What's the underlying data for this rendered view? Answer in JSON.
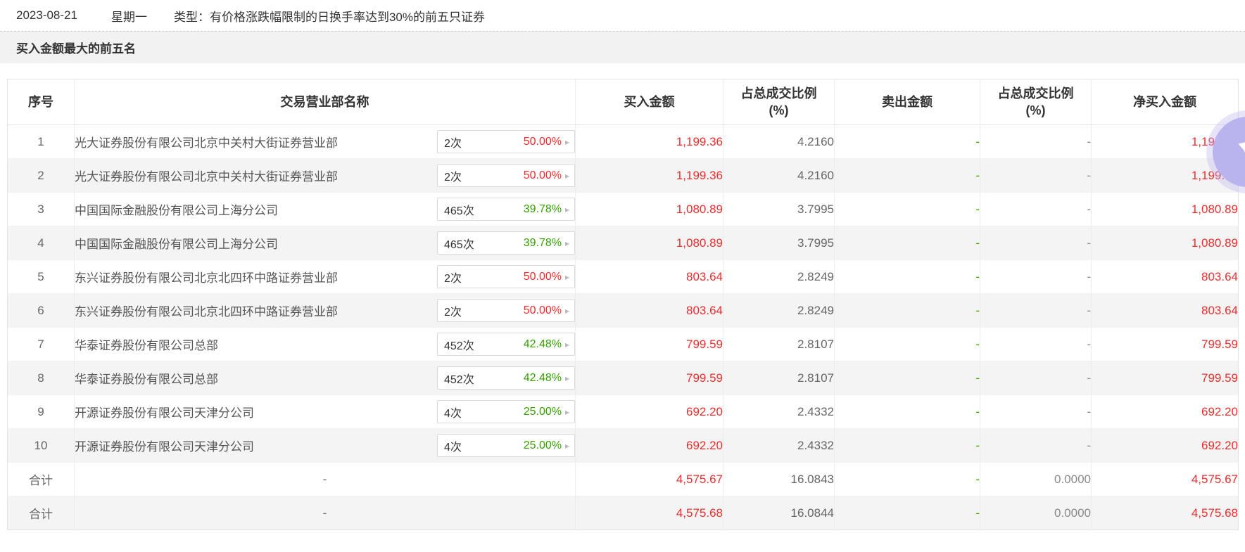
{
  "meta_bar": {
    "date": "2023-08-21",
    "weekday": "星期一",
    "type_label": "类型：有价格涨跌幅限制的日换手率达到30%的前五只证券"
  },
  "section": {
    "title": "买入金额最大的前五名"
  },
  "table": {
    "headers": [
      "序号",
      "交易营业部名称",
      "买入金额",
      "占总成交比例(%)",
      "卖出金额",
      "占总成交比例(%)",
      "净买入金额"
    ],
    "rows": [
      {
        "no": "1",
        "name": "光大证券股份有限公司北京中关村大街证券营业部",
        "badge_count": "2次",
        "badge_percent": "50.00%",
        "percent_color": "red",
        "buy": "1,199.36",
        "buy_ratio": "4.2160",
        "sell": "-",
        "sell_ratio": "-",
        "net": "1,199.36"
      },
      {
        "no": "2",
        "name": "光大证券股份有限公司北京中关村大街证券营业部",
        "badge_count": "2次",
        "badge_percent": "50.00%",
        "percent_color": "red",
        "buy": "1,199.36",
        "buy_ratio": "4.2160",
        "sell": "-",
        "sell_ratio": "-",
        "net": "1,199.36"
      },
      {
        "no": "3",
        "name": "中国国际金融股份有限公司上海分公司",
        "badge_count": "465次",
        "badge_percent": "39.78%",
        "percent_color": "green",
        "buy": "1,080.89",
        "buy_ratio": "3.7995",
        "sell": "-",
        "sell_ratio": "-",
        "net": "1,080.89"
      },
      {
        "no": "4",
        "name": "中国国际金融股份有限公司上海分公司",
        "badge_count": "465次",
        "badge_percent": "39.78%",
        "percent_color": "green",
        "buy": "1,080.89",
        "buy_ratio": "3.7995",
        "sell": "-",
        "sell_ratio": "-",
        "net": "1,080.89"
      },
      {
        "no": "5",
        "name": "东兴证券股份有限公司北京北四环中路证券营业部",
        "badge_count": "2次",
        "badge_percent": "50.00%",
        "percent_color": "red",
        "buy": "803.64",
        "buy_ratio": "2.8249",
        "sell": "-",
        "sell_ratio": "-",
        "net": "803.64"
      },
      {
        "no": "6",
        "name": "东兴证券股份有限公司北京北四环中路证券营业部",
        "badge_count": "2次",
        "badge_percent": "50.00%",
        "percent_color": "red",
        "buy": "803.64",
        "buy_ratio": "2.8249",
        "sell": "-",
        "sell_ratio": "-",
        "net": "803.64"
      },
      {
        "no": "7",
        "name": "华泰证券股份有限公司总部",
        "badge_count": "452次",
        "badge_percent": "42.48%",
        "percent_color": "green",
        "buy": "799.59",
        "buy_ratio": "2.8107",
        "sell": "-",
        "sell_ratio": "-",
        "net": "799.59"
      },
      {
        "no": "8",
        "name": "华泰证券股份有限公司总部",
        "badge_count": "452次",
        "badge_percent": "42.48%",
        "percent_color": "green",
        "buy": "799.59",
        "buy_ratio": "2.8107",
        "sell": "-",
        "sell_ratio": "-",
        "net": "799.59"
      },
      {
        "no": "9",
        "name": "开源证券股份有限公司天津分公司",
        "badge_count": "4次",
        "badge_percent": "25.00%",
        "percent_color": "green",
        "buy": "692.20",
        "buy_ratio": "2.4332",
        "sell": "-",
        "sell_ratio": "-",
        "net": "692.20"
      },
      {
        "no": "10",
        "name": "开源证券股份有限公司天津分公司",
        "badge_count": "4次",
        "badge_percent": "25.00%",
        "percent_color": "green",
        "buy": "692.20",
        "buy_ratio": "2.4332",
        "sell": "-",
        "sell_ratio": "-",
        "net": "692.20"
      }
    ],
    "total_rows": [
      {
        "no": "合计",
        "name": "-",
        "buy": "4,575.67",
        "buy_ratio": "16.0843",
        "sell": "-",
        "sell_ratio": "0.0000",
        "net": "4,575.67"
      },
      {
        "no": "合计",
        "name": "-",
        "buy": "4,575.68",
        "buy_ratio": "16.0844",
        "sell": "-",
        "sell_ratio": "0.0000",
        "net": "4,575.68"
      }
    ],
    "badge_arrow_glyph": "▸"
  },
  "colors": {
    "red": "#f12b2b",
    "green": "#35a000",
    "row_alt_bg": "#f4f4f4",
    "section_bg": "#f2f2f2",
    "border": "#e3e3e3",
    "badge_border": "#d9d9d9",
    "widget_purple": "#b9b3ee"
  }
}
